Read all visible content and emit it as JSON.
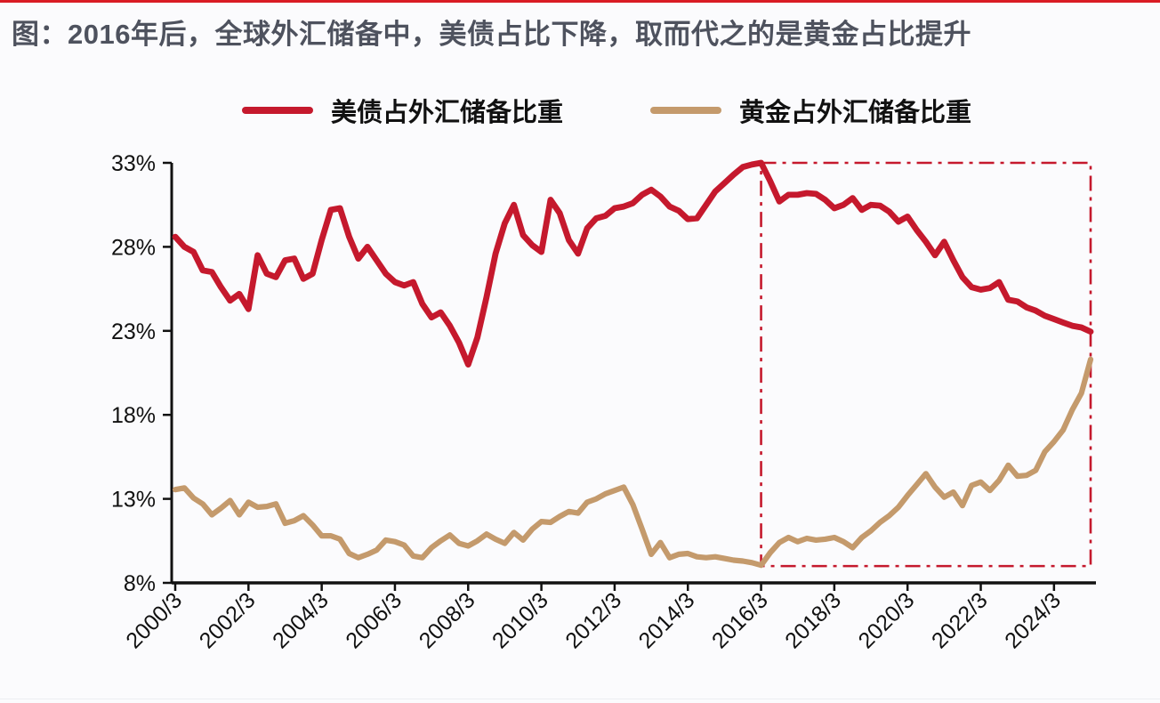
{
  "page": {
    "title": "图：2016年后，全球外汇储备中，美债占比下降，取而代之的是黄金占比提升",
    "title_color": "#4e525e",
    "accent_color": "#d91b24",
    "background": "#fbfbfd"
  },
  "legend": [
    {
      "label": "美债占外汇储备比重",
      "color": "#c5192d"
    },
    {
      "label": "黄金占外汇储备比重",
      "color": "#c49a6c"
    }
  ],
  "chart_data": {
    "type": "line",
    "title": "",
    "xlabel": "",
    "ylabel": "",
    "x_start": "2000/3",
    "x_end": "2025/3",
    "points_per_year": 4,
    "x_tick_labels": [
      "2000/3",
      "2002/3",
      "2004/3",
      "2006/3",
      "2008/3",
      "2010/3",
      "2012/3",
      "2014/3",
      "2016/3",
      "2018/3",
      "2020/3",
      "2022/3",
      "2024/3"
    ],
    "y_ticks": [
      8,
      13,
      18,
      23,
      28,
      33
    ],
    "y_tick_suffix": "%",
    "ylim": [
      8,
      33
    ],
    "grid": false,
    "legend_position": "top",
    "series": [
      {
        "name": "美债占外汇储备比重",
        "color": "#c5192d",
        "values": [
          28.6,
          28.0,
          27.7,
          26.6,
          26.5,
          25.6,
          24.8,
          25.2,
          24.3,
          27.5,
          26.4,
          26.2,
          27.2,
          27.3,
          26.1,
          26.4,
          28.4,
          30.2,
          30.3,
          28.6,
          27.3,
          28.0,
          27.2,
          26.4,
          25.9,
          25.7,
          25.9,
          24.6,
          23.8,
          24.1,
          23.3,
          22.3,
          21.0,
          22.6,
          25.0,
          27.6,
          29.4,
          30.5,
          28.7,
          28.1,
          27.7,
          30.8,
          30.0,
          28.4,
          27.6,
          29.1,
          29.7,
          29.85,
          30.3,
          30.4,
          30.6,
          31.1,
          31.4,
          31.0,
          30.4,
          30.15,
          29.65,
          29.7,
          30.5,
          31.3,
          31.8,
          32.3,
          32.75,
          32.9,
          33.0,
          31.9,
          30.7,
          31.1,
          31.1,
          31.2,
          31.15,
          30.8,
          30.3,
          30.5,
          30.9,
          30.2,
          30.5,
          30.45,
          30.1,
          29.5,
          29.8,
          29.0,
          28.3,
          27.5,
          28.3,
          27.2,
          26.2,
          25.6,
          25.45,
          25.55,
          25.9,
          24.85,
          24.75,
          24.4,
          24.2,
          23.9,
          23.7,
          23.5,
          23.3,
          23.2,
          22.95
        ]
      },
      {
        "name": "黄金占外汇储备比重",
        "color": "#c49a6c",
        "values": [
          13.55,
          13.65,
          13.05,
          12.7,
          12.05,
          12.45,
          12.9,
          12.05,
          12.8,
          12.5,
          12.55,
          12.7,
          11.55,
          11.7,
          12.0,
          11.45,
          10.8,
          10.8,
          10.6,
          9.75,
          9.5,
          9.7,
          9.95,
          10.55,
          10.45,
          10.25,
          9.6,
          9.5,
          10.1,
          10.5,
          10.85,
          10.35,
          10.2,
          10.5,
          10.9,
          10.6,
          10.35,
          11.0,
          10.55,
          11.2,
          11.65,
          11.6,
          11.95,
          12.25,
          12.15,
          12.8,
          13.0,
          13.3,
          13.5,
          13.7,
          12.65,
          11.2,
          9.7,
          10.4,
          9.5,
          9.7,
          9.75,
          9.55,
          9.5,
          9.55,
          9.45,
          9.35,
          9.3,
          9.2,
          9.05,
          9.8,
          10.4,
          10.7,
          10.45,
          10.65,
          10.55,
          10.6,
          10.7,
          10.45,
          10.1,
          10.7,
          11.1,
          11.6,
          12.0,
          12.5,
          13.2,
          13.85,
          14.5,
          13.7,
          13.1,
          13.4,
          12.6,
          13.8,
          14.0,
          13.5,
          14.1,
          15.0,
          14.35,
          14.4,
          14.7,
          15.8,
          16.4,
          17.1,
          18.3,
          19.3,
          21.3
        ]
      }
    ],
    "annotation_box": {
      "label": "2016年后区间",
      "x_from": "2016/3",
      "x_to": "2025/3",
      "y_from": 9.0,
      "y_to": 33.0,
      "style": "dash-dot",
      "color": "#c5192d"
    }
  }
}
